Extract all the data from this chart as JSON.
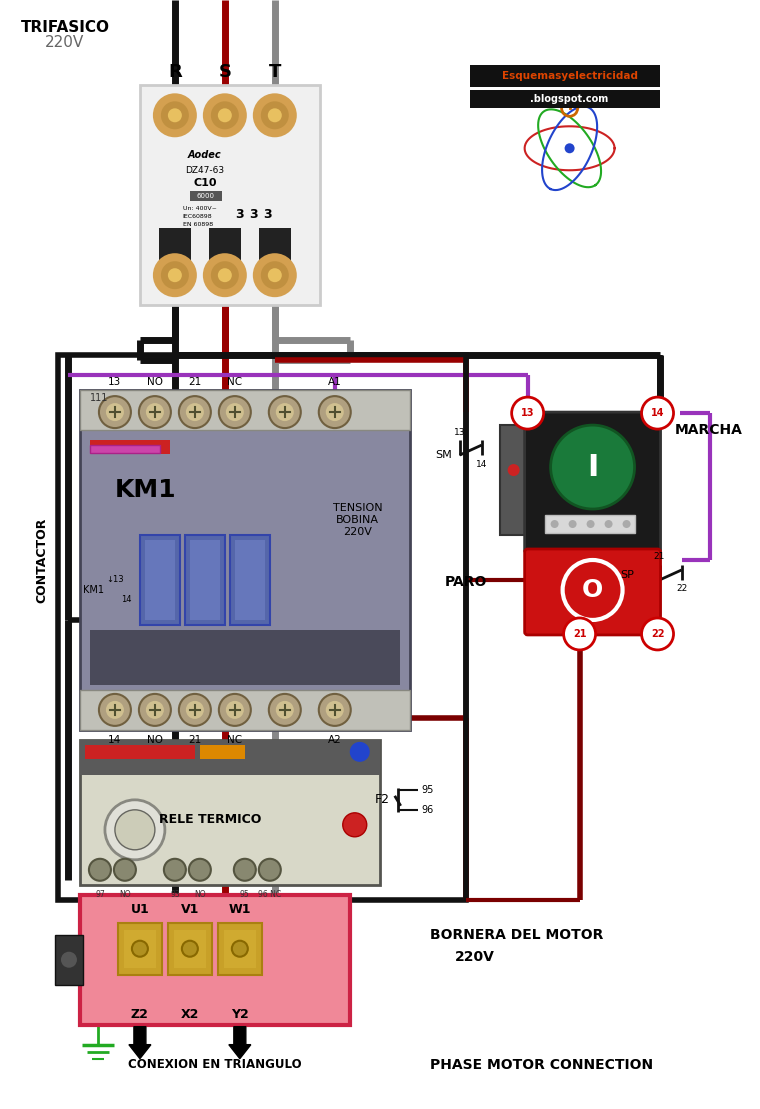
{
  "bg_color": "#ffffff",
  "phase_labels": [
    "R",
    "S",
    "T"
  ],
  "phase_colors_hex": [
    "#1a1a1a",
    "#990000",
    "#888888"
  ],
  "top_label_1": "TRIFASICO",
  "top_label_2": "220V",
  "contactor_label": "KM1",
  "contactor_side": "CONTACTOR",
  "tension_label": "TENSION\nBOBINA\n220V",
  "rele_label": "RELE TERMICO",
  "bornera_label": "BORNERA DEL MOTOR",
  "bornera_label_2": "220V",
  "conexion_label": "CONEXION EN TRIANGULO",
  "phase_motor_label": "PHASE MOTOR CONNECTION",
  "marcha_label": "MARCHA",
  "paro_label": "PARO",
  "green_btn_color": "#1a7a3a",
  "red_btn_color": "#cc1111",
  "purple_wire": "#9933bb",
  "dark_red_wire": "#7a0000",
  "black_wire": "#111111",
  "gray_wire": "#888888",
  "red_wire": "#990000",
  "screw_color": "#c09040",
  "contactor_body": "#6a6a7a",
  "relay_body": "#e8e8e0",
  "logo_bg": "#111111",
  "logo_text_color": "#dd4400",
  "blog_text_color": "#ffffff"
}
